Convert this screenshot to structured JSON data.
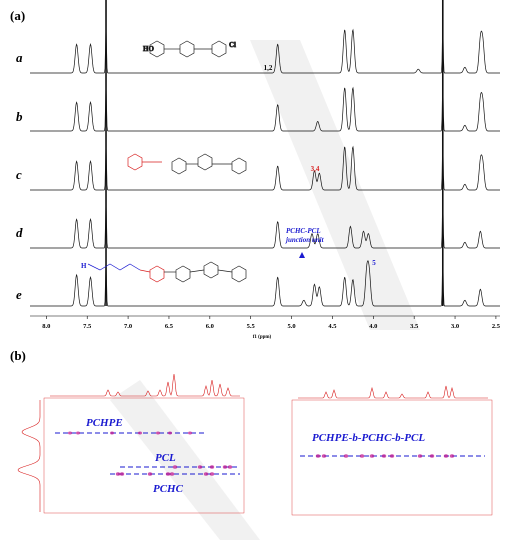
{
  "figure": {
    "panel_a_label": "(a)",
    "panel_b_label": "(b)"
  },
  "colors": {
    "spectrum": "#111111",
    "accent_red": "#d81e1e",
    "accent_blue": "#1a1ad0",
    "watermark": "#e8e8e8",
    "projection_red": "#d81e1e"
  },
  "chart_data": [
    {
      "type": "line",
      "title": "",
      "xlabel": "f1 (ppm)",
      "ylabel": "",
      "xlim": [
        8.2,
        2.45
      ],
      "x_reversed": true,
      "x_ticks": [
        "8.0",
        "7.5",
        "7.0",
        "6.5",
        "6.0",
        "5.5",
        "5.0",
        "4.5",
        "4.0",
        "3.5",
        "3.0",
        "2.5"
      ],
      "grid": false,
      "series": [
        {
          "name": "a",
          "peaks": [
            [
              7.63,
              0.6
            ],
            [
              7.46,
              0.6
            ],
            [
              7.27,
              1.0
            ],
            [
              5.17,
              0.6
            ],
            [
              4.35,
              0.9
            ],
            [
              4.25,
              0.9
            ],
            [
              3.45,
              0.08
            ],
            [
              3.15,
              1.0
            ],
            [
              2.88,
              0.12
            ],
            [
              2.69,
              0.65
            ],
            [
              2.66,
              0.6
            ]
          ]
        },
        {
          "name": "b",
          "peaks": [
            [
              7.63,
              0.6
            ],
            [
              7.46,
              0.6
            ],
            [
              7.27,
              1.0
            ],
            [
              5.17,
              0.55
            ],
            [
              4.68,
              0.2
            ],
            [
              4.35,
              0.9
            ],
            [
              4.25,
              0.9
            ],
            [
              3.15,
              1.0
            ],
            [
              2.88,
              0.12
            ],
            [
              2.69,
              0.6
            ],
            [
              2.66,
              0.55
            ]
          ]
        },
        {
          "name": "c",
          "peaks": [
            [
              7.63,
              0.6
            ],
            [
              7.46,
              0.6
            ],
            [
              7.27,
              1.0
            ],
            [
              5.17,
              0.5
            ],
            [
              4.72,
              0.4
            ],
            [
              4.66,
              0.35
            ],
            [
              4.35,
              0.9
            ],
            [
              4.25,
              0.9
            ],
            [
              3.15,
              1.0
            ],
            [
              2.88,
              0.12
            ],
            [
              2.69,
              0.55
            ],
            [
              2.66,
              0.5
            ]
          ]
        },
        {
          "name": "d",
          "peaks": [
            [
              7.63,
              0.6
            ],
            [
              7.46,
              0.6
            ],
            [
              7.27,
              1.0
            ],
            [
              5.17,
              0.55
            ],
            [
              4.75,
              0.3
            ],
            [
              4.68,
              0.3
            ],
            [
              4.28,
              0.45
            ],
            [
              4.12,
              0.35
            ],
            [
              4.06,
              0.3
            ],
            [
              3.15,
              1.0
            ],
            [
              2.88,
              0.12
            ],
            [
              2.69,
              0.35
            ]
          ]
        },
        {
          "name": "e",
          "peaks": [
            [
              7.63,
              0.65
            ],
            [
              7.46,
              0.6
            ],
            [
              7.27,
              1.0
            ],
            [
              5.17,
              0.6
            ],
            [
              4.85,
              0.12
            ],
            [
              4.72,
              0.45
            ],
            [
              4.66,
              0.4
            ],
            [
              4.35,
              0.6
            ],
            [
              4.25,
              0.55
            ],
            [
              4.08,
              0.7
            ],
            [
              4.05,
              0.65
            ],
            [
              3.15,
              1.0
            ],
            [
              2.88,
              0.12
            ],
            [
              2.69,
              0.35
            ]
          ]
        }
      ],
      "annotations": {
        "peak_12": "1,2",
        "peak_34": "3,4",
        "junction_line1": "PCHC-PCL",
        "junction_line2": "junction unit",
        "peak_5": "5"
      }
    },
    {
      "type": "heatmap",
      "title": "",
      "labels": [
        "PCHPE",
        "PCL",
        "PCHC"
      ]
    },
    {
      "type": "heatmap",
      "title": "",
      "labels": [
        "PCHPE-b-PCHC-b-PCL"
      ]
    }
  ],
  "structures": {
    "a_label_left": "HO",
    "a_label_right": "Cl",
    "e_label_left": "H"
  }
}
